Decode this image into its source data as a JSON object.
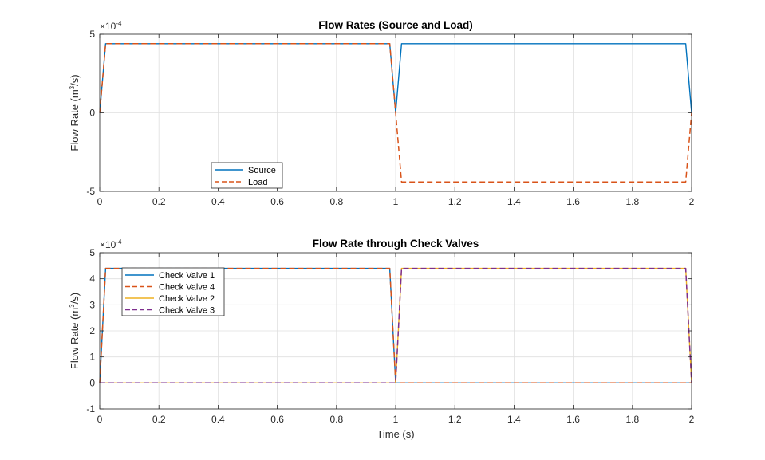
{
  "chart_data": [
    {
      "type": "line",
      "title": "Flow Rates (Source and Load)",
      "xlabel": "",
      "ylabel": {
        "pre": "Flow  Rate  (m",
        "sup": "3",
        "post": "/s)"
      },
      "exponent": {
        "base": "×10",
        "power": "-4"
      },
      "xlim": [
        0,
        2
      ],
      "ylim": [
        -5,
        5
      ],
      "xticks": [
        "0",
        "0.2",
        "0.4",
        "0.6",
        "0.8",
        "1",
        "1.2",
        "1.4",
        "1.6",
        "1.8",
        "2"
      ],
      "yticks": [
        "-5",
        "0",
        "5"
      ],
      "grid": true,
      "legend_position": "bottom-left",
      "series": [
        {
          "name": "Source",
          "color": "#0072BD",
          "style": "solid",
          "x": [
            0,
            0.02,
            0.98,
            1.0,
            1.02,
            1.98,
            2.0
          ],
          "y": [
            0,
            4.4,
            4.4,
            0,
            4.4,
            4.4,
            0
          ]
        },
        {
          "name": "Load",
          "color": "#D95319",
          "style": "dashed",
          "x": [
            0,
            0.02,
            0.98,
            1.0,
            1.02,
            1.98,
            2.0
          ],
          "y": [
            0,
            4.4,
            4.4,
            0,
            -4.4,
            -4.4,
            0
          ]
        }
      ]
    },
    {
      "type": "line",
      "title": "Flow Rate through Check Valves",
      "xlabel": "Time (s)",
      "ylabel": {
        "pre": "Flow  Rate  (m",
        "sup": "3",
        "post": "/s)"
      },
      "exponent": {
        "base": "×10",
        "power": "-4"
      },
      "xlim": [
        0,
        2
      ],
      "ylim": [
        -1,
        5
      ],
      "xticks": [
        "0",
        "0.2",
        "0.4",
        "0.6",
        "0.8",
        "1",
        "1.2",
        "1.4",
        "1.6",
        "1.8",
        "2"
      ],
      "yticks": [
        "-1",
        "0",
        "1",
        "2",
        "3",
        "4",
        "5"
      ],
      "grid": true,
      "legend_position": "top-left",
      "series": [
        {
          "name": "Check Valve 1",
          "color": "#0072BD",
          "style": "solid",
          "x": [
            0,
            0.02,
            0.98,
            1.0,
            2.0
          ],
          "y": [
            0,
            4.4,
            4.4,
            0,
            0
          ]
        },
        {
          "name": "Check Valve 4",
          "color": "#D95319",
          "style": "dashed",
          "x": [
            0,
            0.02,
            0.98,
            1.0,
            2.0
          ],
          "y": [
            0,
            4.4,
            4.4,
            0,
            0
          ]
        },
        {
          "name": "Check Valve 2",
          "color": "#EDB120",
          "style": "solid",
          "x": [
            0,
            1.0,
            1.02,
            1.98,
            2.0
          ],
          "y": [
            0,
            0,
            4.4,
            4.4,
            0
          ]
        },
        {
          "name": "Check Valve 3",
          "color": "#7E2F8E",
          "style": "dashed",
          "x": [
            0,
            1.0,
            1.02,
            1.98,
            2.0
          ],
          "y": [
            0,
            0,
            4.4,
            4.4,
            0
          ]
        }
      ]
    }
  ]
}
